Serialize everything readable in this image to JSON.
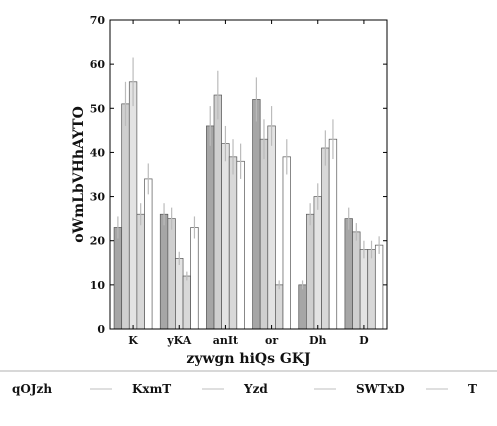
{
  "chart_data": {
    "type": "bar",
    "title": "",
    "xlabel": "zywgn hiQs GKJ",
    "ylabel": "oWmLbVHhAYTO",
    "ylim": [
      0,
      70
    ],
    "yticks": [
      0,
      10,
      20,
      30,
      40,
      50,
      60,
      70
    ],
    "categories": [
      "K",
      "yKA",
      "anIt",
      "or",
      "Dh",
      "D"
    ],
    "legend_title": "qOJzh",
    "legend_placement": "bottom",
    "grid": false,
    "series": [
      {
        "name": "KxmT",
        "color": "#a6a6a6",
        "values": [
          23,
          26,
          46,
          52,
          10,
          25
        ],
        "errors": [
          2.5,
          2.5,
          4.5,
          5,
          1,
          2.5
        ]
      },
      {
        "name": "Yzd",
        "color": "#cfcfcf",
        "values": [
          51,
          25,
          53,
          43,
          26,
          22
        ],
        "errors": [
          5,
          2.5,
          5.5,
          4.5,
          2.5,
          2
        ]
      },
      {
        "name": "SWTxD",
        "color": "#e3e3e3",
        "values": [
          56,
          16,
          42,
          46,
          30,
          18
        ],
        "errors": [
          5.5,
          1.5,
          4,
          4.5,
          3,
          2
        ]
      },
      {
        "name": "T",
        "color": "#d8d8d8",
        "values": [
          26,
          12,
          39,
          10,
          41,
          18
        ],
        "errors": [
          2.5,
          1,
          4,
          1,
          4,
          2
        ]
      },
      {
        "name": "",
        "color": "#ffffff",
        "values": [
          34,
          23,
          38,
          39,
          43,
          19
        ],
        "errors": [
          3.5,
          2.5,
          4,
          4,
          4.5,
          2
        ]
      }
    ]
  }
}
